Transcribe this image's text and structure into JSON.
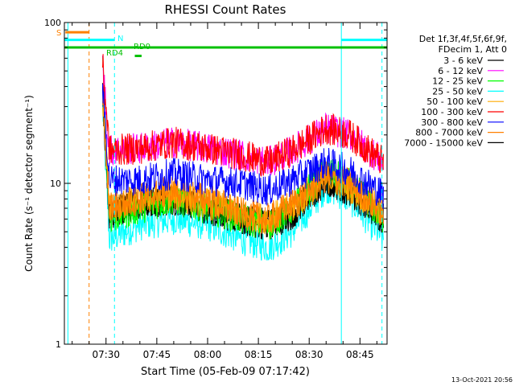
{
  "chart_data": {
    "type": "line",
    "title": "RHESSI Count Rates",
    "xlabel": "Start Time (05-Feb-09 07:17:42)",
    "ylabel": "Count Rate (s⁻¹ detector segment⁻¹)",
    "y_scale": "log",
    "ylim": [
      1,
      100
    ],
    "xlim": [
      "07:17:42",
      "08:53:00"
    ],
    "x_tick_labels": [
      "07:30",
      "07:45",
      "08:00",
      "08:15",
      "08:30",
      "08:45"
    ],
    "y_tick_labels": [
      "1",
      "10",
      "100"
    ],
    "legend_header": [
      "Det 1f,3f,4f,5f,6f,9f,",
      "FDecim 1, Att 0"
    ],
    "legend_position": "right",
    "footer": "13-Oct-2021 20:56",
    "annotations": [
      {
        "text": "S",
        "color": "#ff8000"
      },
      {
        "text": "N",
        "color": "#00ffff"
      },
      {
        "text": "RD0",
        "color": "#00c000"
      },
      {
        "text": "RD4",
        "color": "#00c000"
      }
    ],
    "series": [
      {
        "name": "3 - 6 keV",
        "color": "#000000",
        "x": [
          "07:29",
          "07:31",
          "07:40",
          "07:50",
          "08:00",
          "08:10",
          "08:18",
          "08:25",
          "08:35",
          "08:42",
          "08:52"
        ],
        "values": [
          40,
          6.5,
          7.5,
          8,
          7,
          6,
          5.5,
          6.5,
          10.5,
          9,
          6
        ]
      },
      {
        "name": "6 - 12 keV",
        "color": "#ff00ff",
        "x": [
          "07:29",
          "07:31",
          "07:40",
          "07:50",
          "08:00",
          "08:10",
          "08:18",
          "08:25",
          "08:35",
          "08:42",
          "08:52"
        ],
        "values": [
          55,
          16,
          16.5,
          18,
          16.5,
          15,
          13.5,
          16,
          22,
          20,
          13.5
        ]
      },
      {
        "name": "12 - 25 keV",
        "color": "#00ff00",
        "x": [
          "07:29",
          "07:31",
          "07:40",
          "07:50",
          "08:00",
          "08:10",
          "08:18",
          "08:25",
          "08:35",
          "08:42",
          "08:52"
        ],
        "values": [
          55,
          6,
          7,
          8,
          7,
          6,
          5.5,
          7,
          12,
          10,
          6
        ]
      },
      {
        "name": "25 - 50 keV",
        "color": "#00ffff",
        "x": [
          "07:29",
          "07:31",
          "07:40",
          "07:50",
          "08:00",
          "08:10",
          "08:18",
          "08:25",
          "08:35",
          "08:42",
          "08:52"
        ],
        "values": [
          30,
          4.5,
          5.5,
          6,
          5.5,
          4.5,
          4,
          5,
          9.5,
          8,
          4.5
        ]
      },
      {
        "name": "50 - 100 keV",
        "color": "#ffaa00",
        "x": [
          "07:29",
          "07:31",
          "07:40",
          "07:50",
          "08:00",
          "08:10",
          "08:18",
          "08:25",
          "08:35",
          "08:42",
          "08:52"
        ],
        "values": [
          35,
          7,
          8,
          8.5,
          7.5,
          6.5,
          6,
          7,
          11,
          9.5,
          6.5
        ]
      },
      {
        "name": "100 - 300 keV",
        "color": "#ff0000",
        "x": [
          "07:29",
          "07:31",
          "07:40",
          "07:50",
          "08:00",
          "08:10",
          "08:18",
          "08:25",
          "08:35",
          "08:42",
          "08:52"
        ],
        "values": [
          55,
          16,
          16.5,
          18,
          16.5,
          15,
          13.5,
          16,
          22,
          20,
          13.5
        ]
      },
      {
        "name": "300 - 800 keV",
        "color": "#0000ff",
        "x": [
          "07:29",
          "07:31",
          "07:40",
          "07:50",
          "08:00",
          "08:10",
          "08:18",
          "08:25",
          "08:35",
          "08:42",
          "08:52"
        ],
        "values": [
          40,
          10.5,
          10.5,
          11.5,
          10.5,
          10,
          9,
          10.5,
          13.5,
          12,
          8.5
        ]
      },
      {
        "name": "800 - 7000 keV",
        "color": "#ff8000",
        "x": [
          "07:29",
          "07:31",
          "07:40",
          "07:50",
          "08:00",
          "08:10",
          "08:18",
          "08:25",
          "08:35",
          "08:42",
          "08:52"
        ],
        "values": [
          35,
          7,
          8,
          9,
          8,
          6.5,
          6,
          7.5,
          11,
          10,
          6.5
        ]
      },
      {
        "name": "7000 - 15000 keV",
        "color": "#000000",
        "x": [
          "07:29",
          "07:31",
          "07:40",
          "07:50",
          "08:00",
          "08:10",
          "08:18",
          "08:25",
          "08:35",
          "08:42",
          "08:52"
        ],
        "values": [
          35,
          6.5,
          7.5,
          8,
          7,
          6,
          5.5,
          6.5,
          10.5,
          9,
          6
        ]
      }
    ],
    "vertical_lines": [
      {
        "x": "07:18:45",
        "color": "#00ffff",
        "style": "solid"
      },
      {
        "x": "07:25:00",
        "color": "#ff8000",
        "style": "dashed"
      },
      {
        "x": "07:32:30",
        "color": "#00ffff",
        "style": "dashed"
      },
      {
        "x": "08:39:30",
        "color": "#00ffff",
        "style": "solid"
      },
      {
        "x": "08:51:30",
        "color": "#00ffff",
        "style": "dashed"
      }
    ],
    "flag_bars": [
      {
        "label": "S",
        "color": "#ff8000",
        "y": 87,
        "start": "07:18:00",
        "end": "07:25:00"
      },
      {
        "label": "N",
        "color": "#00ffff",
        "y": 78,
        "start": "07:17:42",
        "end": "07:32:30"
      },
      {
        "label": "N",
        "color": "#00ffff",
        "y": 78,
        "start": "08:39:30",
        "end": "08:53:00"
      },
      {
        "label": "RD0",
        "color": "#00c000",
        "y": 70,
        "start": "07:17:42",
        "end": "08:53:00"
      },
      {
        "label": "RD4",
        "color": "#00c000",
        "y": 62,
        "start": "07:38:30",
        "end": "07:40:30"
      }
    ]
  }
}
